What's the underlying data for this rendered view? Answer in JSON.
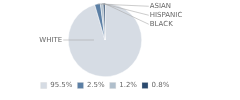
{
  "chart_data": {
    "type": "pie",
    "categories": [
      "WHITE",
      "ASIAN",
      "HISPANIC",
      "BLACK"
    ],
    "values": [
      95.5,
      2.5,
      1.2,
      0.8
    ],
    "value_labels": [
      "95.5%",
      "2.5%",
      "1.2%",
      "0.8%"
    ],
    "colors": [
      "#d6dce4",
      "#5b7fa5",
      "#b0bfcc",
      "#2b4a6e"
    ],
    "legend": "bottom"
  }
}
